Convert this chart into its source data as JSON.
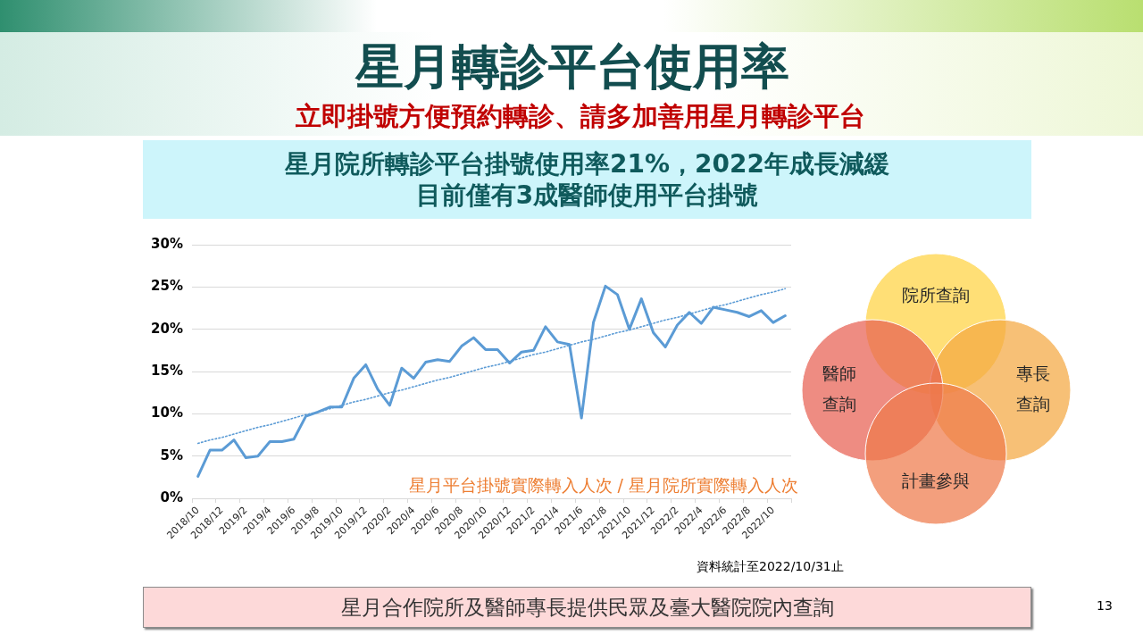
{
  "chart_data": {
    "type": "line",
    "title": "星月轉診平台使用率",
    "subtitle": "立即掛號方便預約轉診、請多加善用星月轉診平台",
    "annotations": [
      "星月院所轉診平台掛號使用率21%，2022年成長減緩",
      "目前僅有3成醫師使用平台掛號",
      "星月平台掛號實際轉入人次 / 星月院所實際轉入人次",
      "院所查詢",
      "醫師查詢",
      "專長查詢",
      "計畫參與",
      "資料統計至2022/10/31止",
      "星月合作院所及醫師專長提供民眾及臺大醫院院內查詢",
      "13"
    ],
    "categories": [
      "2018/10",
      null,
      "2018/12",
      null,
      "2019/2",
      null,
      "2019/4",
      null,
      "2019/6",
      null,
      "2019/8",
      null,
      "2019/10",
      null,
      "2019/12",
      null,
      "2020/2",
      null,
      "2020/4",
      null,
      "2020/6",
      null,
      "2020/8",
      null,
      "2020/10",
      null,
      "2020/12",
      null,
      "2021/2",
      null,
      "2021/4",
      null,
      "2021/6",
      null,
      "2021/8",
      null,
      "2021/10",
      null,
      "2021/12",
      null,
      "2022/2",
      null,
      "2022/4",
      null,
      "2022/6",
      null,
      "2022/8",
      null,
      "2022/10",
      null
    ],
    "series": [
      {
        "color": "#5b9bd5",
        "line_style": "solid",
        "values": [
          2.6,
          5.7,
          5.7,
          6.9,
          4.8,
          5.0,
          6.7,
          6.7,
          7.0,
          9.7,
          10.2,
          10.8,
          10.8,
          14.2,
          15.8,
          12.9,
          11.0,
          15.4,
          14.2,
          16.1,
          16.4,
          16.2,
          18.0,
          19.0,
          17.6,
          17.6,
          16.0,
          17.3,
          17.5,
          20.3,
          18.5,
          18.2,
          9.5,
          20.8,
          25.1,
          24.1,
          20.0,
          23.6,
          19.6,
          17.9,
          20.5,
          22.0,
          20.7,
          22.6,
          22.3,
          22.0,
          21.5,
          22.2,
          20.8,
          21.6
        ]
      },
      {
        "type": "line",
        "color": "#5b9bd5",
        "line_style": "dotted",
        "values": [
          6.5,
          6.9,
          7.2,
          7.6,
          8.0,
          8.4,
          8.7,
          9.1,
          9.5,
          9.9,
          10.2,
          10.6,
          11.0,
          11.4,
          11.7,
          12.1,
          12.5,
          12.8,
          13.2,
          13.6,
          14.0,
          14.3,
          14.7,
          15.1,
          15.5,
          15.8,
          16.2,
          16.6,
          17.0,
          17.3,
          17.7,
          18.1,
          18.5,
          18.8,
          19.2,
          19.6,
          19.9,
          20.3,
          20.7,
          21.1,
          21.4,
          21.8,
          22.2,
          22.6,
          22.9,
          23.3,
          23.7,
          24.1,
          24.4,
          24.8
        ]
      }
    ],
    "ylim": [
      0,
      30
    ],
    "yticks": [
      {
        "value": 0,
        "label": "0%"
      },
      {
        "value": 5,
        "label": "5%"
      },
      {
        "value": 10,
        "label": "10%"
      },
      {
        "value": 15,
        "label": "15%"
      },
      {
        "value": 20,
        "label": "20%"
      },
      {
        "value": 25,
        "label": "25%"
      },
      {
        "value": 30,
        "label": "30%"
      }
    ],
    "grid": "y",
    "legend": false,
    "marker": "none"
  }
}
